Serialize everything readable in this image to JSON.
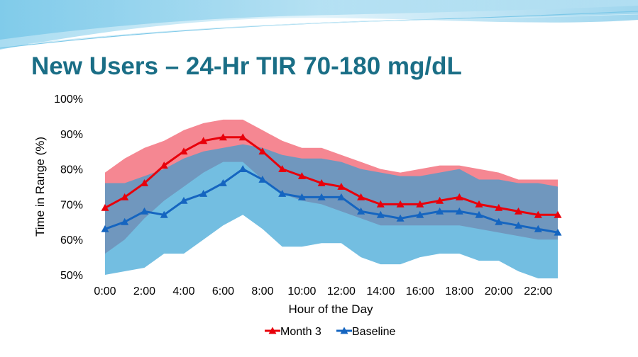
{
  "slide": {
    "title": "New Users – 24-Hr TIR 70-180 mg/dL",
    "colors": {
      "title": "#1a6e86",
      "banner_light": "#cfeaf5",
      "banner_mid": "#6cc3e6"
    }
  },
  "chart_data": {
    "type": "line",
    "title": "",
    "xlabel": "Hour of the Day",
    "ylabel": "Time in Range (%)",
    "x": [
      0,
      1,
      2,
      3,
      4,
      5,
      6,
      7,
      8,
      9,
      10,
      11,
      12,
      13,
      14,
      15,
      16,
      17,
      18,
      19,
      20,
      21,
      22,
      23
    ],
    "x_ticks": [
      "0:00",
      "2:00",
      "4:00",
      "6:00",
      "8:00",
      "10:00",
      "12:00",
      "14:00",
      "16:00",
      "18:00",
      "20:00",
      "22:00"
    ],
    "x_tick_values": [
      0,
      2,
      4,
      6,
      8,
      10,
      12,
      14,
      16,
      18,
      20,
      22
    ],
    "y_ticks": [
      "50%",
      "60%",
      "70%",
      "80%",
      "90%",
      "100%"
    ],
    "y_tick_values": [
      50,
      60,
      70,
      80,
      90,
      100
    ],
    "ylim": [
      50,
      100
    ],
    "xlim": [
      0,
      23
    ],
    "grid": false,
    "legend_position": "bottom",
    "series": [
      {
        "name": "Month 3",
        "color": "#e8000b",
        "marker": "triangle",
        "values": [
          69,
          72,
          76,
          81,
          85,
          88,
          89,
          89,
          85,
          80,
          78,
          76,
          75,
          72,
          70,
          70,
          70,
          71,
          72,
          70,
          69,
          68,
          67,
          67
        ]
      },
      {
        "name": "Baseline",
        "color": "#1565c0",
        "marker": "triangle",
        "values": [
          63,
          65,
          68,
          67,
          71,
          73,
          76,
          80,
          77,
          73,
          72,
          72,
          72,
          68,
          67,
          66,
          67,
          68,
          68,
          67,
          65,
          64,
          63,
          62
        ]
      }
    ],
    "bands": [
      {
        "series": "Month 3",
        "color": "#f47a86",
        "upper": [
          79,
          83,
          86,
          88,
          91,
          93,
          94,
          94,
          91,
          88,
          86,
          86,
          84,
          82,
          80,
          79,
          80,
          81,
          81,
          80,
          79,
          77,
          77,
          77
        ],
        "lower": [
          56,
          60,
          66,
          71,
          75,
          79,
          82,
          82,
          77,
          73,
          71,
          70,
          68,
          66,
          64,
          64,
          64,
          64,
          64,
          63,
          62,
          61,
          60,
          60
        ]
      },
      {
        "series": "Baseline",
        "color": "#319fd3",
        "upper": [
          76,
          76,
          78,
          80,
          83,
          85,
          86,
          87,
          86,
          84,
          83,
          83,
          82,
          80,
          79,
          78,
          78,
          79,
          80,
          77,
          77,
          76,
          76,
          75
        ],
        "lower": [
          50,
          51,
          52,
          56,
          56,
          60,
          64,
          67,
          63,
          58,
          58,
          59,
          59,
          55,
          53,
          53,
          55,
          56,
          56,
          54,
          54,
          51,
          49,
          49
        ]
      }
    ],
    "legend": [
      {
        "label": "",
        "color": "#ffffff"
      },
      {
        "label": "Month 3",
        "color": "#e8000b"
      },
      {
        "label": "Baseline",
        "color": "#1565c0"
      }
    ]
  }
}
